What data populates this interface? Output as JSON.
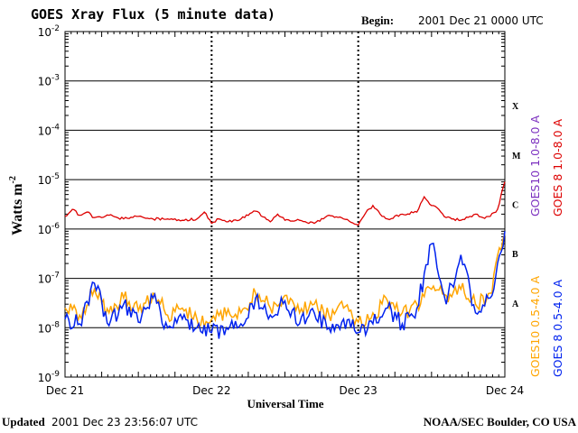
{
  "header": {
    "title": "GOES Xray Flux (5 minute data)",
    "begin_label": "Begin:",
    "begin_value": "2001 Dec 21 0000 UTC"
  },
  "footer": {
    "updated_label": "Updated",
    "updated_value": "2001 Dec 23 23:56:07 UTC",
    "source": "NOAA/SEC Boulder, CO USA"
  },
  "chart_data": {
    "type": "line",
    "title": "GOES Xray Flux (5 minute data)",
    "xlabel": "Universal Time",
    "ylabel": "Watts m",
    "ylabel_superscript": "-2",
    "yscale": "log",
    "ylim": [
      1e-09,
      0.01
    ],
    "y_ticks": [
      {
        "base": "10",
        "exp": "-2",
        "value": 0.01
      },
      {
        "base": "10",
        "exp": "-3",
        "value": 0.001
      },
      {
        "base": "10",
        "exp": "-4",
        "value": 0.0001
      },
      {
        "base": "10",
        "exp": "-5",
        "value": 1e-05
      },
      {
        "base": "10",
        "exp": "-6",
        "value": 1e-06
      },
      {
        "base": "10",
        "exp": "-7",
        "value": 1e-07
      },
      {
        "base": "10",
        "exp": "-8",
        "value": 1e-08
      },
      {
        "base": "10",
        "exp": "-9",
        "value": 1e-09
      }
    ],
    "x_ticks": [
      "Dec 21",
      "Dec 22",
      "Dec 23",
      "Dec 24"
    ],
    "flare_classes": [
      {
        "label": "X",
        "value": 0.000316
      },
      {
        "label": "M",
        "value": 3.16e-05
      },
      {
        "label": "C",
        "value": 3.16e-06
      },
      {
        "label": "B",
        "value": 3.16e-07
      },
      {
        "label": "A",
        "value": 3.16e-08
      }
    ],
    "grid": true,
    "legend_placement": "right",
    "colors": {
      "goes10_long": "#7b2fbf",
      "goes8_long": "#dd0000",
      "goes10_short": "#ffa500",
      "goes8_short": "#0022ee"
    },
    "series": [
      {
        "name": "GOES10 1.0-8.0 A",
        "color": "#7b2fbf",
        "x_days": [
          0,
          3
        ],
        "values": []
      },
      {
        "name": "GOES 8 1.0-8.0 A",
        "color": "#dd0000",
        "x_days": [
          0,
          0.05,
          0.1,
          0.15,
          0.2,
          0.3,
          0.4,
          0.5,
          0.6,
          0.7,
          0.8,
          0.9,
          0.95,
          1.0,
          1.05,
          1.1,
          1.2,
          1.3,
          1.4,
          1.45,
          1.5,
          1.6,
          1.7,
          1.8,
          1.9,
          2.0,
          2.05,
          2.1,
          2.15,
          2.2,
          2.3,
          2.4,
          2.45,
          2.5,
          2.55,
          2.6,
          2.7,
          2.8,
          2.85,
          2.9,
          2.95,
          3.0
        ],
        "values": [
          1.8e-06,
          2.5e-06,
          1.9e-06,
          2.2e-06,
          1.7e-06,
          1.9e-06,
          1.6e-06,
          1.8e-06,
          1.6e-06,
          1.6e-06,
          1.5e-06,
          1.6e-06,
          2.2e-06,
          1.3e-06,
          1.6e-06,
          1.4e-06,
          1.6e-06,
          2.3e-06,
          1.4e-06,
          2e-06,
          1.5e-06,
          1.5e-06,
          1.3e-06,
          1.9e-06,
          1.6e-06,
          1.2e-06,
          2.1e-06,
          3e-06,
          2e-06,
          1.6e-06,
          2e-06,
          2.2e-06,
          4.5e-06,
          3e-06,
          2.5e-06,
          1.7e-06,
          1.5e-06,
          2e-06,
          1.7e-06,
          1.8e-06,
          2.5e-06,
          9e-06
        ]
      },
      {
        "name": "GOES10 0.5-4.0 A",
        "color": "#ffa500",
        "x_days": [
          0,
          0.1,
          0.2,
          0.3,
          0.4,
          0.5,
          0.6,
          0.7,
          0.8,
          0.9,
          1.0,
          1.1,
          1.2,
          1.3,
          1.4,
          1.5,
          1.6,
          1.7,
          1.8,
          1.9,
          2.0,
          2.1,
          2.2,
          2.3,
          2.4,
          2.5,
          2.6,
          2.7,
          2.8,
          2.9,
          3.0
        ],
        "values": [
          2.5e-08,
          1.8e-08,
          6e-08,
          2e-08,
          4e-08,
          2.2e-08,
          5e-08,
          1.8e-08,
          2.5e-08,
          1.5e-08,
          1.5e-08,
          1.8e-08,
          2e-08,
          5e-08,
          2.5e-08,
          4.5e-08,
          2e-08,
          3e-08,
          1.8e-08,
          2.5e-08,
          1.3e-08,
          2e-08,
          3.5e-08,
          2e-08,
          3e-08,
          6e-08,
          4.5e-08,
          6e-08,
          3e-08,
          5e-08,
          8e-07
        ]
      },
      {
        "name": "GOES 8 0.5-4.0 A",
        "color": "#0022ee",
        "x_days": [
          0,
          0.1,
          0.2,
          0.3,
          0.4,
          0.5,
          0.6,
          0.7,
          0.8,
          0.9,
          1.0,
          1.1,
          1.2,
          1.3,
          1.4,
          1.5,
          1.6,
          1.7,
          1.8,
          1.9,
          2.0,
          2.1,
          2.2,
          2.3,
          2.4,
          2.5,
          2.6,
          2.7,
          2.8,
          2.9,
          3.0
        ],
        "values": [
          1.5e-08,
          1.2e-08,
          8e-08,
          1.1e-08,
          3e-08,
          1.3e-08,
          4e-08,
          1e-08,
          1.5e-08,
          1e-08,
          8e-09,
          1e-08,
          1.2e-08,
          4e-08,
          1.8e-08,
          3.5e-08,
          1.2e-08,
          2e-08,
          1e-08,
          1.5e-08,
          8e-09,
          1.2e-08,
          2.5e-08,
          1.2e-08,
          2.5e-08,
          5e-07,
          3e-08,
          3e-07,
          2e-08,
          4e-08,
          9e-07
        ]
      }
    ]
  }
}
